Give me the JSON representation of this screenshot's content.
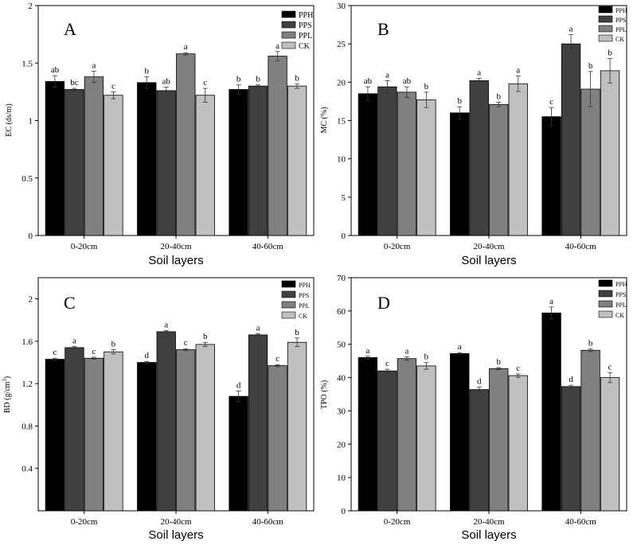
{
  "chart_data": [
    {
      "type": "bar",
      "panel": "A",
      "ylabel": "EC (ds/m)",
      "xlabel": "Soil layers",
      "categories": [
        "0-20cm",
        "20-40cm",
        "40-60cm"
      ],
      "ylim": [
        0,
        2
      ],
      "yticks": [
        "0",
        "0.5",
        "1",
        "1.5",
        "2"
      ],
      "ytick_values": [
        0,
        0.5,
        1,
        1.5,
        2
      ],
      "legend_position": "top-right",
      "series": [
        {
          "name": "PPH",
          "color": "#000000",
          "values": [
            1.34,
            1.33,
            1.27
          ],
          "errors": [
            0.05,
            0.05,
            0.04
          ],
          "labels": [
            "ab",
            "b",
            "b"
          ]
        },
        {
          "name": "PPS",
          "color": "#404040",
          "values": [
            1.27,
            1.26,
            1.3
          ],
          "errors": [
            0.01,
            0.03,
            0.01
          ],
          "labels": [
            "bc",
            "ab",
            "b"
          ]
        },
        {
          "name": "PPL",
          "color": "#808080",
          "values": [
            1.38,
            1.58,
            1.56
          ],
          "errors": [
            0.05,
            0.01,
            0.04
          ],
          "labels": [
            "a",
            "a",
            "a"
          ]
        },
        {
          "name": "CK",
          "color": "#c0c0c0",
          "values": [
            1.22,
            1.22,
            1.3
          ],
          "errors": [
            0.03,
            0.06,
            0.02
          ],
          "labels": [
            "c",
            "c",
            "b"
          ]
        }
      ]
    },
    {
      "type": "bar",
      "panel": "B",
      "ylabel": "MC (%)",
      "xlabel": "Soil layers",
      "categories": [
        "0-20cm",
        "20-40cm",
        "40-60cm"
      ],
      "ylim": [
        0,
        30
      ],
      "yticks": [
        "0",
        "5",
        "10",
        "15",
        "20",
        "25",
        "30"
      ],
      "ytick_values": [
        0,
        5,
        10,
        15,
        20,
        25,
        30
      ],
      "legend_position": "top-right",
      "series": [
        {
          "name": "PPH",
          "color": "#000000",
          "values": [
            18.5,
            16.0,
            15.5
          ],
          "errors": [
            0.9,
            0.8,
            1.2
          ],
          "labels": [
            "ab",
            "b",
            "c"
          ]
        },
        {
          "name": "PPS",
          "color": "#404040",
          "values": [
            19.4,
            20.2,
            25.0
          ],
          "errors": [
            0.8,
            0.3,
            1.2
          ],
          "labels": [
            "a",
            "a",
            "a"
          ]
        },
        {
          "name": "PPL",
          "color": "#808080",
          "values": [
            18.7,
            17.1,
            19.1
          ],
          "errors": [
            0.7,
            0.3,
            2.3
          ],
          "labels": [
            "ab",
            "b",
            "b"
          ]
        },
        {
          "name": "CK",
          "color": "#c0c0c0",
          "values": [
            17.7,
            19.8,
            21.5
          ],
          "errors": [
            1.0,
            1.0,
            1.6
          ],
          "labels": [
            "b",
            "a",
            "b"
          ]
        }
      ]
    },
    {
      "type": "bar",
      "panel": "C",
      "ylabel": "BD (g/cm",
      "ylabel_sup": "3",
      "ylabel_end": ")",
      "xlabel": "Soil layers",
      "categories": [
        "0-20cm",
        "20-40cm",
        "40-60cm"
      ],
      "ylim": [
        0,
        2.2
      ],
      "yticks": [
        "0.4",
        "0.8",
        "1.2",
        "1.6",
        "2"
      ],
      "ytick_values": [
        0.4,
        0.8,
        1.2,
        1.6,
        2.0
      ],
      "legend_position": "top-right",
      "series": [
        {
          "name": "PPH",
          "color": "#000000",
          "values": [
            1.43,
            1.4,
            1.08
          ],
          "errors": [
            0.01,
            0.01,
            0.05
          ],
          "labels": [
            "c",
            "d",
            "d"
          ]
        },
        {
          "name": "PPS",
          "color": "#404040",
          "values": [
            1.54,
            1.69,
            1.66
          ],
          "errors": [
            0.01,
            0.01,
            0.01
          ],
          "labels": [
            "a",
            "a",
            "a"
          ]
        },
        {
          "name": "PPL",
          "color": "#808080",
          "values": [
            1.44,
            1.52,
            1.37
          ],
          "errors": [
            0.01,
            0.01,
            0.01
          ],
          "labels": [
            "c",
            "c",
            "c"
          ]
        },
        {
          "name": "CK",
          "color": "#c0c0c0",
          "values": [
            1.5,
            1.57,
            1.59
          ],
          "errors": [
            0.02,
            0.02,
            0.04
          ],
          "labels": [
            "b",
            "b",
            "b"
          ]
        }
      ]
    },
    {
      "type": "bar",
      "panel": "D",
      "ylabel": "TPO (%)",
      "xlabel": "Soil layers",
      "categories": [
        "0-20cm",
        "20-40cm",
        "40-60cm"
      ],
      "ylim": [
        0,
        70
      ],
      "yticks": [
        "0",
        "10",
        "20",
        "30",
        "40",
        "50",
        "60",
        "70"
      ],
      "ytick_values": [
        0,
        10,
        20,
        30,
        40,
        50,
        60,
        70
      ],
      "legend_position": "top-right",
      "series": [
        {
          "name": "PPH",
          "color": "#000000",
          "values": [
            46.0,
            47.2,
            59.4
          ],
          "errors": [
            0.4,
            0.3,
            1.8
          ],
          "labels": [
            "a",
            "a",
            "a"
          ]
        },
        {
          "name": "PPS",
          "color": "#404040",
          "values": [
            42.0,
            36.4,
            37.3
          ],
          "errors": [
            0.5,
            0.8,
            0.4
          ],
          "labels": [
            "c",
            "d",
            "d"
          ]
        },
        {
          "name": "PPL",
          "color": "#808080",
          "values": [
            45.7,
            42.7,
            48.2
          ],
          "errors": [
            0.5,
            0.3,
            0.4
          ],
          "labels": [
            "a",
            "b",
            "b"
          ]
        },
        {
          "name": "CK",
          "color": "#c0c0c0",
          "values": [
            43.5,
            40.6,
            40.0
          ],
          "errors": [
            1.0,
            0.5,
            1.5
          ],
          "labels": [
            "b",
            "c",
            "c"
          ]
        }
      ]
    }
  ]
}
